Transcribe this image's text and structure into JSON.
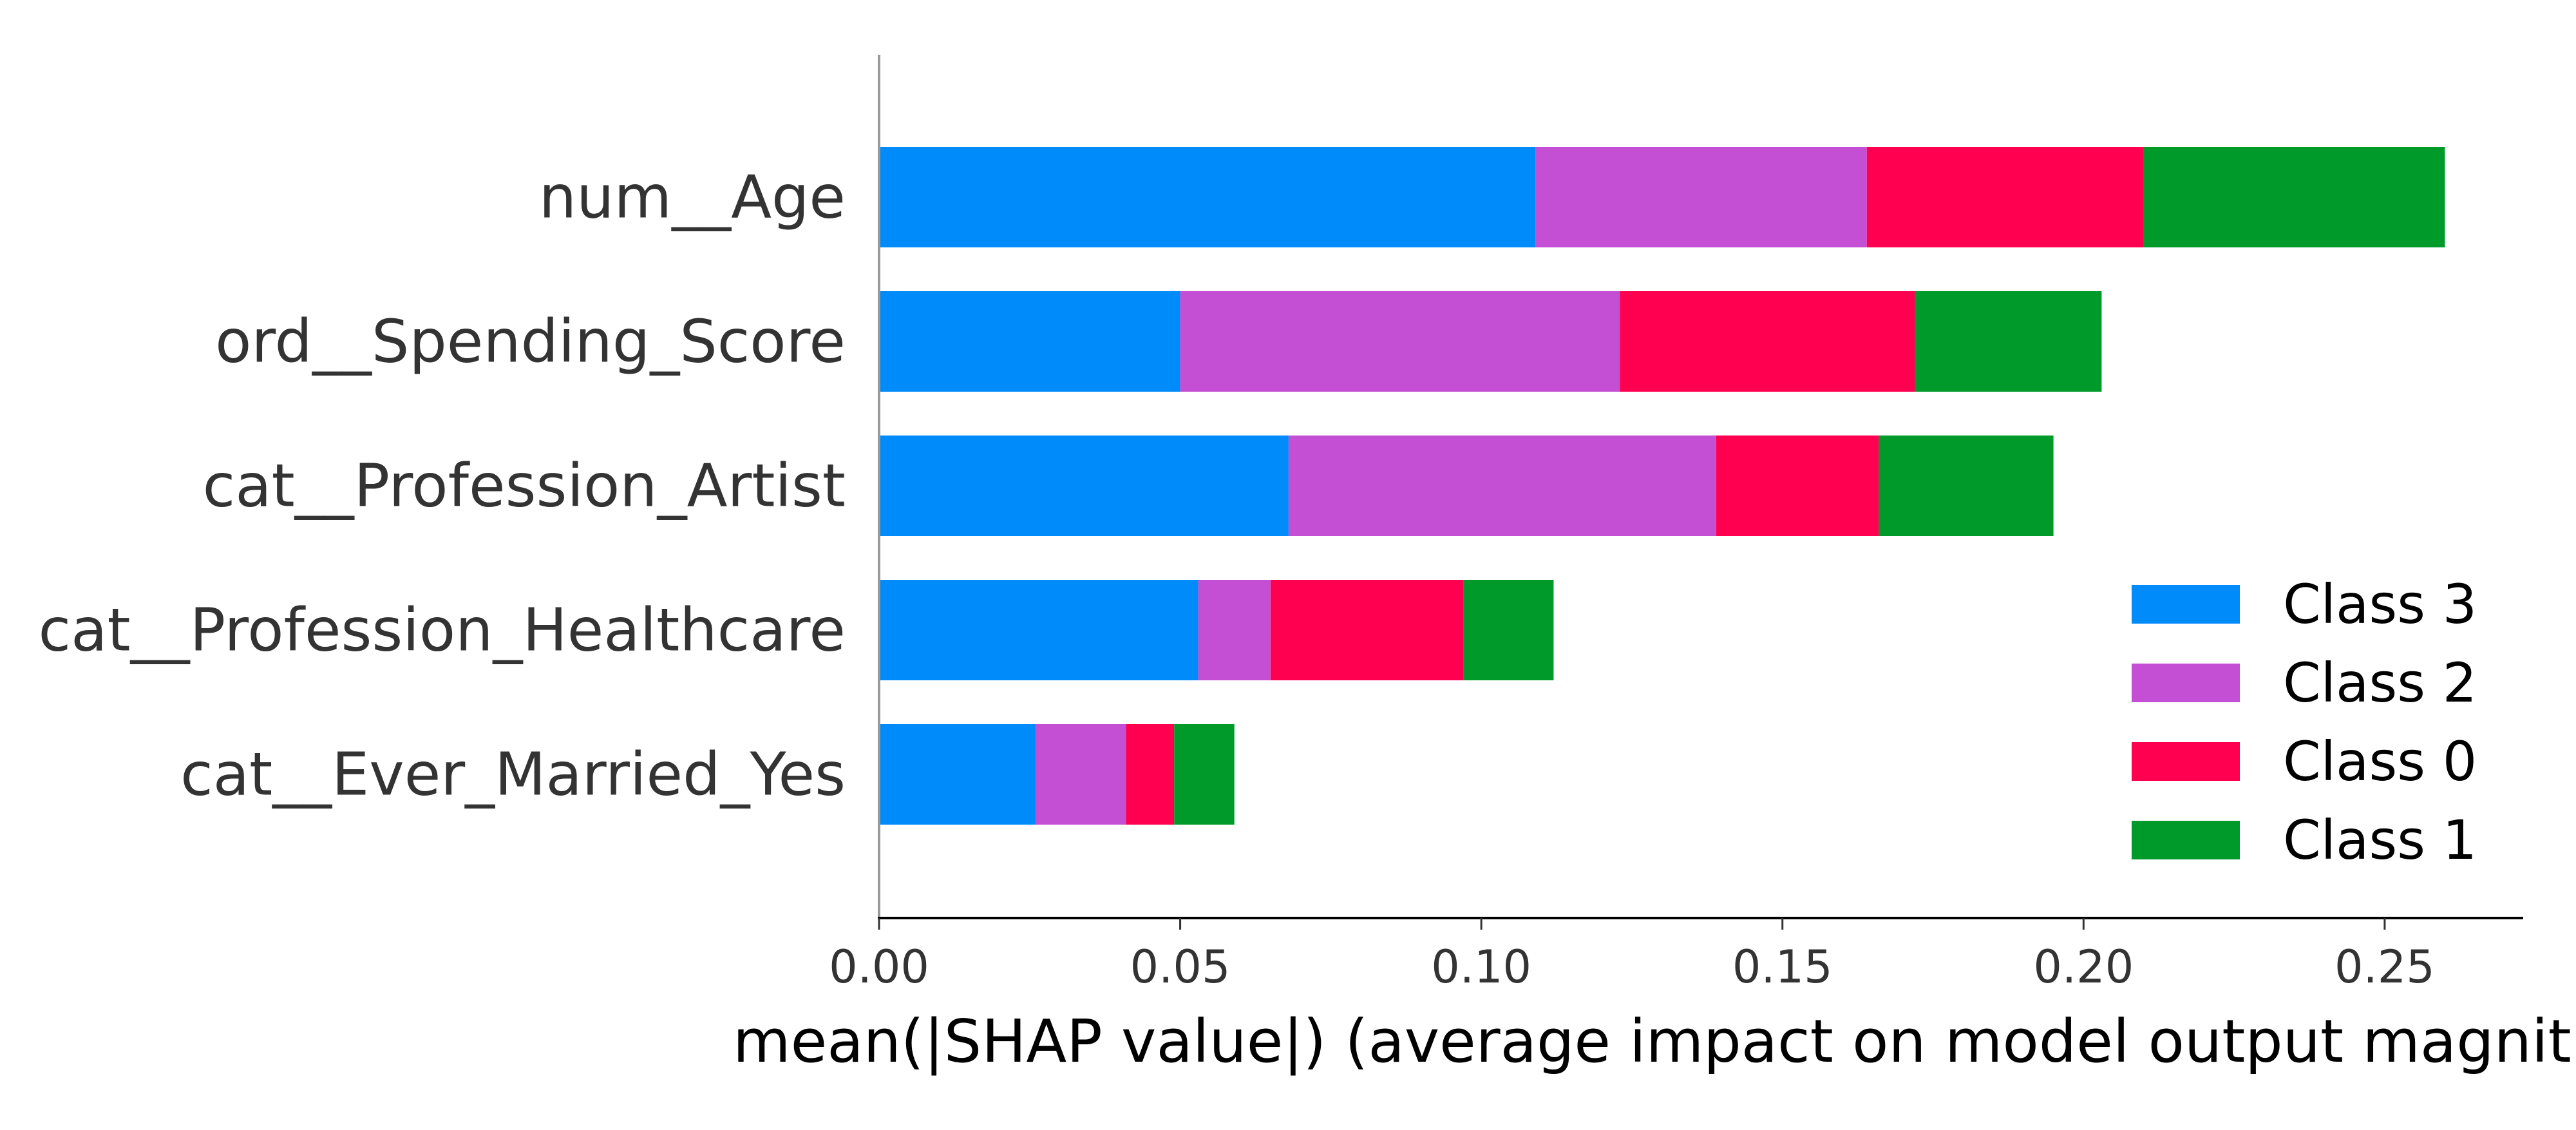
{
  "chart_data": {
    "type": "bar",
    "orientation": "horizontal",
    "stacked": true,
    "title": "",
    "xlabel": "mean(|SHAP value|) (average impact on model output magnitude)",
    "ylabel": "",
    "xlim": [
      0,
      0.273
    ],
    "xticks": [
      "0.00",
      "0.05",
      "0.10",
      "0.15",
      "0.20",
      "0.25"
    ],
    "categories": [
      "num__Age",
      "ord__Spending_Score",
      "cat__Profession_Artist",
      "cat__Profession_Healthcare",
      "cat__Ever_Married_Yes"
    ],
    "series": [
      {
        "name": "Class 3",
        "color": "#008bfb",
        "values": [
          0.109,
          0.05,
          0.068,
          0.053,
          0.026
        ]
      },
      {
        "name": "Class 2",
        "color": "#c44ed4",
        "values": [
          0.055,
          0.073,
          0.071,
          0.012,
          0.015
        ]
      },
      {
        "name": "Class 0",
        "color": "#ff0051",
        "values": [
          0.046,
          0.049,
          0.027,
          0.032,
          0.008
        ]
      },
      {
        "name": "Class 1",
        "color": "#009a2a",
        "values": [
          0.05,
          0.031,
          0.029,
          0.015,
          0.01
        ]
      }
    ],
    "legend": {
      "placement": "lower-right",
      "order": [
        "Class 3",
        "Class 2",
        "Class 0",
        "Class 1"
      ]
    },
    "grid": false
  }
}
